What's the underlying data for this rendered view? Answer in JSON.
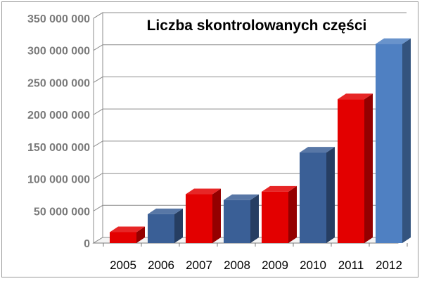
{
  "chart_data": {
    "type": "bar",
    "title": "Liczba skontrolowanych  części",
    "categories": [
      "2005",
      "2006",
      "2007",
      "2008",
      "2009",
      "2010",
      "2011",
      "2012"
    ],
    "values": [
      17000000,
      45000000,
      76000000,
      67000000,
      80000000,
      141000000,
      224000000,
      310000000
    ],
    "colors": [
      "#e30000",
      "#3a5f96",
      "#e30000",
      "#3a5f96",
      "#e30000",
      "#3a5f96",
      "#e30000",
      "#4f80c2"
    ],
    "ylim": [
      0,
      350000000
    ],
    "yticks": [
      0,
      50000000,
      100000000,
      150000000,
      200000000,
      250000000,
      300000000,
      350000000
    ],
    "ytick_labels": [
      "0",
      "50 000 000",
      "100 000 000",
      "150 000 000",
      "200 000 000",
      "250 000 000",
      "300 000 000",
      "350 000 000"
    ],
    "grid": true,
    "legend": "none",
    "style": "3d-column"
  }
}
